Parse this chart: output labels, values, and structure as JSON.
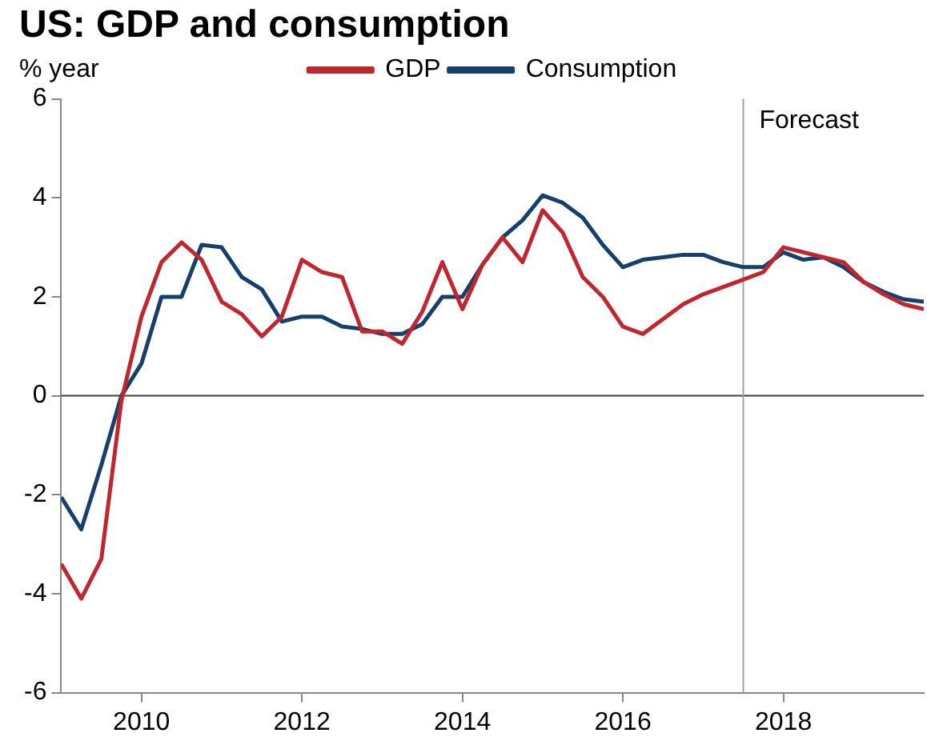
{
  "chart_data": {
    "type": "line",
    "title": "US: GDP and consumption",
    "ylabel": "% year",
    "x": [
      2009,
      2009.25,
      2009.5,
      2009.75,
      2010,
      2010.25,
      2010.5,
      2010.75,
      2011,
      2011.25,
      2011.5,
      2011.75,
      2012,
      2012.25,
      2012.5,
      2012.75,
      2013,
      2013.25,
      2013.5,
      2013.75,
      2014,
      2014.25,
      2014.5,
      2014.75,
      2015,
      2015.25,
      2015.5,
      2015.75,
      2016,
      2016.25,
      2016.5,
      2016.75,
      2017,
      2017.25,
      2017.5,
      2017.75,
      2018,
      2018.25,
      2018.5,
      2018.75,
      2019,
      2019.25,
      2019.5,
      2019.75
    ],
    "series": [
      {
        "name": "GDP",
        "color": "#c0262d",
        "values": [
          -3.4,
          -4.1,
          -3.3,
          -0.1,
          1.6,
          2.7,
          3.1,
          2.75,
          1.9,
          1.65,
          1.2,
          1.6,
          2.75,
          2.5,
          2.4,
          1.3,
          1.3,
          1.05,
          1.7,
          2.7,
          1.75,
          2.65,
          3.2,
          2.7,
          3.75,
          3.3,
          2.4,
          2.0,
          1.4,
          1.25,
          1.55,
          1.85,
          2.05,
          2.2,
          2.35,
          2.5,
          3.0,
          2.9,
          2.8,
          2.7,
          2.3,
          2.05,
          1.85,
          1.75
        ]
      },
      {
        "name": "Consumption",
        "color": "#173f6b",
        "values": [
          -2.05,
          -2.7,
          -1.4,
          0.0,
          0.65,
          2.0,
          2.0,
          3.05,
          3.0,
          2.4,
          2.15,
          1.5,
          1.6,
          1.6,
          1.4,
          1.35,
          1.25,
          1.25,
          1.45,
          2.0,
          2.0,
          2.65,
          3.2,
          3.55,
          4.05,
          3.9,
          3.6,
          3.05,
          2.6,
          2.75,
          2.8,
          2.85,
          2.85,
          2.7,
          2.6,
          2.6,
          2.9,
          2.75,
          2.8,
          2.6,
          2.3,
          2.1,
          1.95,
          1.9
        ]
      }
    ],
    "xlim": [
      2009,
      2019.75
    ],
    "xticks": [
      2010,
      2012,
      2014,
      2016,
      2018
    ],
    "ylim": [
      -6,
      6
    ],
    "yticks": [
      -6,
      -4,
      -2,
      0,
      2,
      4,
      6
    ],
    "ref_lines": [
      {
        "axis": "y",
        "value": 0,
        "label": null,
        "color": "#404040"
      },
      {
        "axis": "x",
        "value": 2017.5,
        "label": "Forecast",
        "color": "#a0a0a0"
      }
    ],
    "grid": false,
    "legend": "top left",
    "marker": "none",
    "line_style": "solid"
  }
}
